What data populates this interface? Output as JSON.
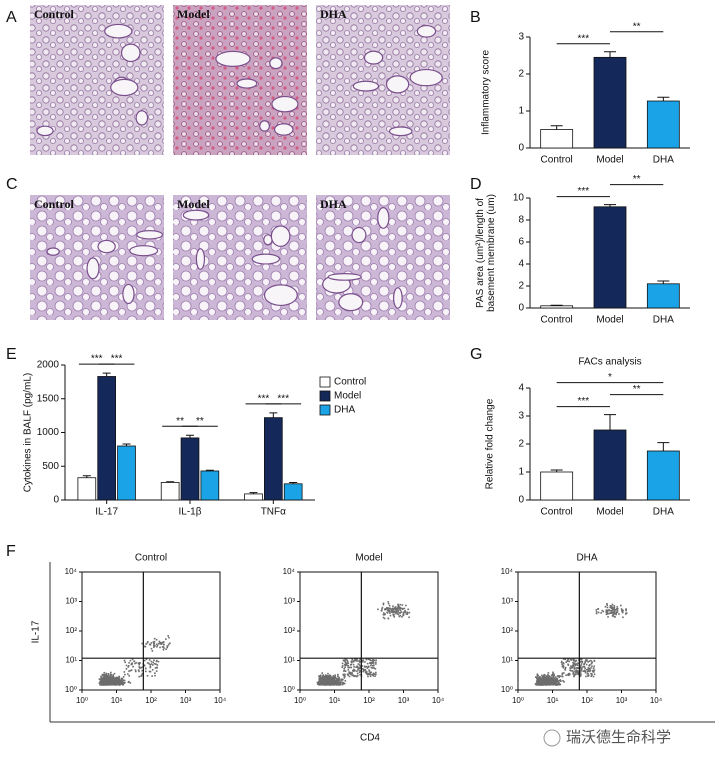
{
  "histology": [
    {
      "panel": "A",
      "labels": [
        "Control",
        "Model",
        "DHA"
      ]
    },
    {
      "panel": "C",
      "labels": [
        "Control",
        "Model",
        "DHA"
      ]
    }
  ],
  "chart_data": [
    {
      "panel": "B",
      "type": "bar",
      "ylabel": [
        "Inflammatory score"
      ],
      "categories": [
        "Control",
        "Model",
        "DHA"
      ],
      "values": [
        0.5,
        2.45,
        1.27
      ],
      "errors": [
        0.1,
        0.15,
        0.1
      ],
      "colors": [
        "#ffffff",
        "#14295a",
        "#1aa3e6"
      ],
      "ylim": [
        0,
        3
      ],
      "yticks": [
        0,
        1,
        2,
        3
      ],
      "significance": [
        {
          "pair": [
            "Control",
            "Model"
          ],
          "label": "***"
        },
        {
          "pair": [
            "Model",
            "DHA"
          ],
          "label": "**"
        }
      ]
    },
    {
      "panel": "D",
      "type": "bar",
      "ylabel": [
        "PAS area (um²)/length of",
        "basement membrane (um)"
      ],
      "categories": [
        "Control",
        "Model",
        "DHA"
      ],
      "values": [
        0.2,
        9.2,
        2.2
      ],
      "errors": [
        0.05,
        0.2,
        0.25
      ],
      "colors": [
        "#ffffff",
        "#14295a",
        "#1aa3e6"
      ],
      "ylim": [
        0,
        10
      ],
      "yticks": [
        0,
        2,
        4,
        6,
        8,
        10
      ],
      "significance": [
        {
          "pair": [
            "Control",
            "Model"
          ],
          "label": "***"
        },
        {
          "pair": [
            "Model",
            "DHA"
          ],
          "label": "**"
        }
      ]
    },
    {
      "panel": "E",
      "type": "grouped-bar",
      "ylabel": [
        "Cytokines in BALF (pg/mL)"
      ],
      "categories": [
        "IL-17",
        "IL-1β",
        "TNFα"
      ],
      "series": [
        {
          "name": "Control",
          "color": "#ffffff",
          "values": [
            330,
            260,
            90
          ],
          "errors": [
            30,
            10,
            20
          ]
        },
        {
          "name": "Model",
          "color": "#14295a",
          "values": [
            1830,
            920,
            1220
          ],
          "errors": [
            50,
            40,
            70
          ]
        },
        {
          "name": "DHA",
          "color": "#1aa3e6",
          "values": [
            800,
            430,
            240
          ],
          "errors": [
            30,
            10,
            20
          ]
        }
      ],
      "ylim": [
        0,
        2000
      ],
      "yticks": [
        0,
        500,
        1000,
        1500,
        2000
      ],
      "significance": [
        {
          "category": "IL-17",
          "pair": [
            "Control",
            "Model"
          ],
          "label": "***"
        },
        {
          "category": "IL-17",
          "pair": [
            "Model",
            "DHA"
          ],
          "label": "***"
        },
        {
          "category": "IL-1β",
          "pair": [
            "Control",
            "Model"
          ],
          "label": "**"
        },
        {
          "category": "IL-1β",
          "pair": [
            "Model",
            "DHA"
          ],
          "label": "**"
        },
        {
          "category": "TNFα",
          "pair": [
            "Control",
            "Model"
          ],
          "label": "***"
        },
        {
          "category": "TNFα",
          "pair": [
            "Model",
            "DHA"
          ],
          "label": "***"
        }
      ]
    },
    {
      "panel": "G",
      "type": "bar",
      "title": "FACs analysis",
      "ylabel": [
        "Relative fold change"
      ],
      "categories": [
        "Control",
        "Model",
        "DHA"
      ],
      "values": [
        1.0,
        2.5,
        1.75
      ],
      "errors": [
        0.07,
        0.55,
        0.3
      ],
      "colors": [
        "#ffffff",
        "#14295a",
        "#1aa3e6"
      ],
      "ylim": [
        0,
        4
      ],
      "yticks": [
        0,
        1,
        2,
        3,
        4
      ],
      "significance": [
        {
          "pair": [
            "Control",
            "Model"
          ],
          "label": "***"
        },
        {
          "pair": [
            "Model",
            "DHA"
          ],
          "label": "**"
        },
        {
          "pair": [
            "Control",
            "DHA"
          ],
          "label": "*"
        }
      ]
    },
    {
      "panel": "F",
      "type": "flow-scatter",
      "titles": [
        "Control",
        "Model",
        "DHA"
      ],
      "xlabel": "CD4",
      "ylabel": "IL-17",
      "log": true,
      "xlim": [
        1,
        10000
      ],
      "ylim": [
        1,
        10000
      ],
      "gate_x": 60,
      "gate_y": 12,
      "xticks": [
        {
          "value": 1,
          "label": "10⁰"
        },
        {
          "value": 10,
          "label": "10¹"
        },
        {
          "value": 100,
          "label": "10²"
        },
        {
          "value": 1000,
          "label": "10³"
        },
        {
          "value": 10000,
          "label": "10⁴"
        }
      ],
      "yticks": [
        {
          "value": 1,
          "label": "10⁰"
        },
        {
          "value": 10,
          "label": "10¹"
        },
        {
          "value": 100,
          "label": "10²"
        },
        {
          "value": 1000,
          "label": "10³"
        },
        {
          "value": 10000,
          "label": "10⁴"
        }
      ]
    }
  ],
  "watermark": "瑞沃德生命科学"
}
